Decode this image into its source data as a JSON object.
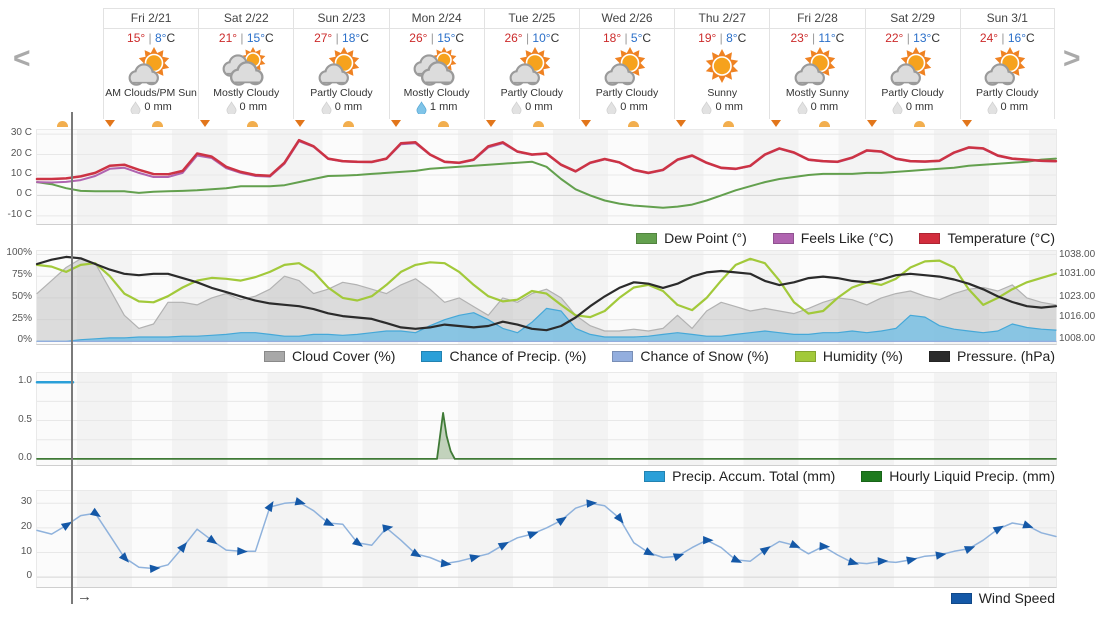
{
  "nav": {
    "prev": "<",
    "next": ">"
  },
  "pan_arrow": "→",
  "colors": {
    "high_temp_text": "#cc2b2b",
    "low_temp_text": "#2a6fc9",
    "temperature": "#cc3344",
    "feels_like": "#b064b0",
    "dew_point": "#63a04e",
    "cloud_cover": "#a8a8a8",
    "chance_precip": "#2a9fd8",
    "chance_snow": "#93aede",
    "humidity": "#a2c93a",
    "pressure": "#2b2b2b",
    "precip_accum": "#2a9fd8",
    "hourly_precip": "#1e7a1e",
    "wind": "#1458a7",
    "wind_line": "#8fb2dc",
    "now_line": "#7a7a7a"
  },
  "days": [
    {
      "name": "Fri 2/21",
      "high": "15°",
      "low": "8°",
      "unit": "C",
      "condition": "AM Clouds/PM Sun",
      "precip": "0 mm",
      "icon": "partly",
      "precip_icon": "gray-droplet"
    },
    {
      "name": "Sat 2/22",
      "high": "21°",
      "low": "15°",
      "unit": "C",
      "condition": "Mostly Cloudy",
      "precip": "0 mm",
      "icon": "mostly-cloudy",
      "precip_icon": "gray-droplet"
    },
    {
      "name": "Sun 2/23",
      "high": "27°",
      "low": "18°",
      "unit": "C",
      "condition": "Partly Cloudy",
      "precip": "0 mm",
      "icon": "partly",
      "precip_icon": "gray-droplet"
    },
    {
      "name": "Mon 2/24",
      "high": "26°",
      "low": "15°",
      "unit": "C",
      "condition": "Mostly Cloudy",
      "precip": "1 mm",
      "icon": "mostly-cloudy",
      "precip_icon": "blue-droplet"
    },
    {
      "name": "Tue 2/25",
      "high": "26°",
      "low": "10°",
      "unit": "C",
      "condition": "Partly Cloudy",
      "precip": "0 mm",
      "icon": "partly",
      "precip_icon": "gray-droplet"
    },
    {
      "name": "Wed 2/26",
      "high": "18°",
      "low": "5°",
      "unit": "C",
      "condition": "Partly Cloudy",
      "precip": "0 mm",
      "icon": "partly",
      "precip_icon": "gray-droplet"
    },
    {
      "name": "Thu 2/27",
      "high": "19°",
      "low": "8°",
      "unit": "C",
      "condition": "Sunny",
      "precip": "0 mm",
      "icon": "sunny",
      "precip_icon": "gray-droplet"
    },
    {
      "name": "Fri 2/28",
      "high": "23°",
      "low": "11°",
      "unit": "C",
      "condition": "Mostly Sunny",
      "precip": "0 mm",
      "icon": "partly",
      "precip_icon": "gray-droplet"
    },
    {
      "name": "Sat 2/29",
      "high": "22°",
      "low": "13°",
      "unit": "C",
      "condition": "Partly Cloudy",
      "precip": "0 mm",
      "icon": "partly",
      "precip_icon": "gray-droplet"
    },
    {
      "name": "Sun 3/1",
      "high": "24°",
      "low": "16°",
      "unit": "C",
      "condition": "Partly Cloudy",
      "precip": "0 mm",
      "icon": "partly",
      "precip_icon": "gray-droplet"
    }
  ],
  "chart_data": [
    {
      "id": "temperature",
      "type": "line",
      "ylim": [
        -14,
        32
      ],
      "yticks": [
        {
          "v": 30,
          "label": "30 C"
        },
        {
          "v": 20,
          "label": "20 C"
        },
        {
          "v": 10,
          "label": "10 C"
        },
        {
          "v": 0,
          "label": "0 C"
        },
        {
          "v": -10,
          "label": "-10 C"
        }
      ],
      "series": [
        {
          "name": "Dew Point (°)",
          "color": "#63a04e",
          "swatch": "#63a04e",
          "width": 2,
          "values": [
            6.5,
            5.5,
            3.5,
            2.2,
            2,
            2,
            2,
            1.2,
            1.8,
            2,
            2.2,
            2.5,
            3,
            3.5,
            4.5,
            4.5,
            4.5,
            5,
            6.5,
            8,
            9.5,
            9.7,
            10,
            10.5,
            11,
            11.5,
            12,
            13,
            13.5,
            14,
            14.5,
            15,
            15.5,
            16,
            16.5,
            14,
            8,
            3,
            0,
            -2.5,
            -4,
            -5,
            -5.5,
            -6,
            -5.5,
            -4.5,
            -2.5,
            0,
            2.5,
            4.5,
            6.5,
            8,
            9,
            10,
            10.5,
            10.5,
            10.5,
            11,
            11,
            11.5,
            12,
            12.5,
            13,
            13.5,
            14.5,
            15,
            15.5,
            16,
            16.5,
            17.5,
            18
          ]
        },
        {
          "name": "Feels Like (°C)",
          "color": "#b064b0",
          "swatch": "#b064b0",
          "width": 2,
          "values": [
            6.5,
            6.3,
            6.6,
            7.5,
            9.5,
            13,
            13.5,
            11,
            9,
            9,
            11,
            19.5,
            18.3,
            13.3,
            11,
            9.5,
            9.2,
            15.5,
            26.5,
            23.8,
            17.8,
            16.6,
            16.3,
            16.2,
            17.8,
            25,
            25.5,
            19.8,
            16.3,
            15.8,
            17.3,
            23.5,
            25.5,
            21.3,
            19.8,
            20.3,
            14.8,
            11.6,
            15.8,
            17.6,
            16,
            12.3,
            10.8,
            12.3,
            17.3,
            19.3,
            15.8,
            13.3,
            12.8,
            14.3,
            19.8,
            22.8,
            20.8,
            17.3,
            16.6,
            16.3,
            18.3,
            21.8,
            21.3,
            17.8,
            16.6,
            16.4,
            16.8,
            20.8,
            23.3,
            22.8,
            19.3,
            17.8,
            17.3,
            16.8,
            16.6
          ]
        },
        {
          "name": "Temperature (°C)",
          "color": "#cc3344",
          "swatch": "#d22d3d",
          "width": 2.5,
          "values": [
            8,
            8,
            8.3,
            9.3,
            11,
            14.5,
            15,
            12.5,
            10.4,
            10.3,
            12,
            20.5,
            19,
            14,
            11.5,
            10,
            9.6,
            16,
            27,
            24,
            18,
            16.8,
            16.5,
            16.4,
            18,
            25.5,
            26,
            20,
            16.5,
            16,
            17.5,
            24,
            26,
            21.5,
            20,
            20.5,
            15,
            11.8,
            16,
            17.8,
            16.2,
            12.5,
            11,
            12.5,
            17.5,
            19.5,
            16,
            13.5,
            13,
            14.5,
            20,
            23,
            21,
            17.5,
            16.8,
            16.5,
            18.5,
            22,
            21.5,
            18,
            16.8,
            16.6,
            17,
            21,
            23.5,
            23,
            19.5,
            18,
            17.5,
            17,
            16.8
          ]
        }
      ]
    },
    {
      "id": "atmosphere",
      "type": "area-line",
      "ylim": [
        -3,
        104
      ],
      "ylim_right": [
        1006.6,
        1039.6
      ],
      "yticks": [
        {
          "v": 100,
          "label": "100%"
        },
        {
          "v": 75,
          "label": "75%"
        },
        {
          "v": 50,
          "label": "50%"
        },
        {
          "v": 25,
          "label": "25%"
        },
        {
          "v": 0,
          "label": "0%"
        }
      ],
      "yticks_right": [
        {
          "v": 1038,
          "label": "1038.00"
        },
        {
          "v": 1031,
          "label": "1031.00"
        },
        {
          "v": 1023,
          "label": "1023.00"
        },
        {
          "v": 1016,
          "label": "1016.00"
        },
        {
          "v": 1008,
          "label": "1008.00"
        }
      ],
      "series": [
        {
          "name": "Cloud Cover (%)",
          "color": "#b2b2b2",
          "swatch": "#a8a8a8",
          "width": 1.2,
          "fill": "rgba(190,190,190,0.5)",
          "values": [
            55,
            70,
            85,
            95,
            90,
            60,
            30,
            15,
            20,
            45,
            45,
            42,
            50,
            55,
            48,
            52,
            60,
            75,
            70,
            55,
            60,
            68,
            65,
            60,
            55,
            65,
            72,
            60,
            45,
            50,
            40,
            30,
            50,
            45,
            55,
            60,
            50,
            30,
            18,
            12,
            12,
            14,
            12,
            15,
            30,
            15,
            35,
            45,
            40,
            35,
            38,
            35,
            32,
            38,
            45,
            50,
            48,
            42,
            50,
            55,
            58,
            52,
            48,
            55,
            60,
            62,
            58,
            65,
            50,
            45,
            42
          ]
        },
        {
          "name": "Chance of Precip. (%)",
          "color": "#45a8d8",
          "swatch": "#2a9fd8",
          "width": 1.2,
          "fill": "rgba(110,190,230,0.75)",
          "values": [
            0,
            0,
            0,
            2,
            3,
            4,
            4,
            5,
            5,
            5,
            6,
            6,
            7,
            8,
            10,
            10,
            8,
            6,
            6,
            8,
            8,
            7,
            8,
            10,
            12,
            12,
            10,
            18,
            25,
            30,
            33,
            25,
            15,
            10,
            22,
            38,
            35,
            15,
            8,
            5,
            5,
            5,
            6,
            8,
            10,
            8,
            6,
            6,
            8,
            10,
            12,
            10,
            8,
            8,
            10,
            10,
            12,
            10,
            12,
            15,
            30,
            28,
            18,
            14,
            12,
            10,
            12,
            20,
            16,
            14,
            13
          ]
        },
        {
          "name": "Chance of Snow (%)",
          "color": "#93aede",
          "swatch": "#93aede",
          "width": 1.2,
          "values": [
            0,
            0
          ]
        },
        {
          "name": "Humidity (%)",
          "color": "#a2c93a",
          "swatch": "#a2c93a",
          "width": 2.2,
          "values": [
            88,
            86,
            80,
            88,
            90,
            75,
            55,
            46,
            45,
            52,
            62,
            70,
            73,
            72,
            70,
            74,
            80,
            88,
            90,
            80,
            62,
            50,
            47,
            52,
            65,
            80,
            88,
            91,
            90,
            80,
            65,
            52,
            46,
            48,
            58,
            55,
            42,
            30,
            28,
            35,
            50,
            62,
            65,
            58,
            42,
            36,
            50,
            70,
            88,
            95,
            90,
            70,
            45,
            32,
            35,
            50,
            62,
            68,
            65,
            72,
            85,
            92,
            93,
            85,
            60,
            42,
            50,
            60,
            68,
            73,
            78
          ]
        },
        {
          "name": "Pressure. (hPa)",
          "color": "#2b2b2b",
          "swatch": "#2b2b2b",
          "width": 2.2,
          "axis": "right",
          "values": [
            1035,
            1036.5,
            1037.5,
            1037,
            1035,
            1033,
            1031.5,
            1031,
            1031.5,
            1031.5,
            1030,
            1028.5,
            1026.5,
            1025,
            1023.5,
            1022,
            1021,
            1020.5,
            1020,
            1019,
            1017.5,
            1016.5,
            1016,
            1015.5,
            1014,
            1012.5,
            1012,
            1012.5,
            1013.5,
            1013,
            1012.5,
            1013,
            1014.5,
            1013.5,
            1012,
            1011.5,
            1013,
            1016,
            1020,
            1023.5,
            1026.5,
            1028.5,
            1028,
            1026.5,
            1028,
            1030.5,
            1032,
            1032.5,
            1032,
            1031.5,
            1029,
            1027.5,
            1028.5,
            1030,
            1030.5,
            1030,
            1029,
            1028.5,
            1029.5,
            1031,
            1031.5,
            1031,
            1030.5,
            1029.5,
            1028,
            1026,
            1023.5,
            1021.5,
            1020,
            1019.5,
            1020
          ]
        }
      ]
    },
    {
      "id": "precipitation",
      "type": "line",
      "ylim": [
        -0.08,
        1.12
      ],
      "yticks": [
        {
          "v": 1,
          "label": "1.0"
        },
        {
          "v": 0.75,
          "label": ""
        },
        {
          "v": 0.5,
          "label": "0.5"
        },
        {
          "v": 0.25,
          "label": ""
        },
        {
          "v": 0,
          "label": "0.0"
        }
      ],
      "series": [
        {
          "name": "Precip. Accum. Total (mm)",
          "color": "#2a9fd8",
          "swatch": "#2a9fd8",
          "width": 2.5,
          "x": [
            0,
            0.0353
          ],
          "values": [
            1,
            1
          ]
        },
        {
          "name": "Hourly Liquid Precip. (mm)",
          "color": "#3f7a36",
          "swatch": "#1e7a1e",
          "width": 1.8,
          "fill": "rgba(110,150,95,0.4)",
          "x": [
            0,
            0.3925,
            0.3985,
            0.402,
            0.406,
            0.41,
            1
          ],
          "values": [
            0,
            0,
            0.6,
            0.3,
            0.1,
            0,
            0
          ]
        }
      ]
    },
    {
      "id": "wind",
      "type": "line",
      "ylim": [
        -4,
        35
      ],
      "yticks": [
        {
          "v": 30,
          "label": "30"
        },
        {
          "v": 20,
          "label": "20"
        },
        {
          "v": 10,
          "label": "10"
        },
        {
          "v": 0,
          "label": "0"
        }
      ],
      "series": [
        {
          "name": "Wind Speed",
          "color": "#8fb2dc",
          "swatch": "#1458a7",
          "width": 1.5,
          "markers": "arrows",
          "marker_color": "#1458a7",
          "values": [
            19,
            17.5,
            21,
            25,
            26,
            17,
            8,
            4,
            3.5,
            5,
            12,
            19.5,
            15,
            11,
            10.5,
            10.5,
            28.5,
            30,
            30.5,
            27,
            22,
            21.5,
            14,
            13,
            20,
            15,
            9.5,
            8,
            5.5,
            6.5,
            8,
            9.5,
            13,
            16,
            17.5,
            20,
            23,
            28,
            30,
            29,
            24,
            14,
            10,
            8,
            8.5,
            12,
            15,
            12,
            7,
            6.5,
            11,
            14.5,
            13,
            9.5,
            12.5,
            9,
            6,
            5.5,
            6.5,
            6,
            7,
            8.5,
            9,
            10.5,
            11.5,
            15,
            19.5,
            22,
            21,
            18,
            16.5
          ]
        }
      ]
    }
  ]
}
